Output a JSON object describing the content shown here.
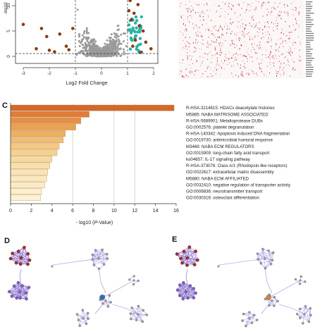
{
  "panels": {
    "c": "C",
    "d": "D",
    "e": "E"
  },
  "volcano": {
    "xlabel": "Log2 Fold Change",
    "ylabel": "-log10",
    "x_ticks": [
      "-3",
      "-2",
      "-1",
      "0",
      "1",
      "2"
    ],
    "y_ticks": [
      "0",
      "5",
      "10"
    ],
    "colors": {
      "ns": "#9a9a9a",
      "up": "#2bb3a6",
      "down": "#8b3a14"
    }
  },
  "chart_data": {
    "type": "bar",
    "orientation": "horizontal",
    "xlabel_prefix": "- log10 (",
    "xlabel_italic": "P",
    "xlabel_suffix": "-Value)",
    "xlim": [
      0,
      16
    ],
    "x_ticks": [
      "0",
      "2",
      "4",
      "6",
      "8",
      "10",
      "12",
      "14",
      "16"
    ],
    "grid_x": [
      6,
      10,
      12
    ],
    "categories": [
      "R-HSA-3214815: HDACs deacetylate histones",
      "M5885: NABA MATRISOME ASSOCIATED",
      "R-HSA-5689901: Metalloprotease DUBs",
      "GO:0002576: platelet degranulation",
      "R-HSA-140342: Apoptosis induced DNA fragmentation",
      "GO:0019730: antimicrobial humoral response",
      "M3468: NABA ECM REGULATORS",
      "GO:0015909: long-chain fatty acid transport",
      "ko04657: IL-17 signaling pathway",
      "R-HSA-373076: Class A/1 (Rhodopsin-like receptors)",
      "GO:0022617: extracellular matrix disassembly",
      "M5880: NABA ECM AFFILIATED",
      "GO:0032410: negative regulation of transporter activity",
      "GO:0006836: neurotransmitter transport",
      "GO:0030316: osteoclast differentiation"
    ],
    "values": [
      15.8,
      7.6,
      6.8,
      6.3,
      5.3,
      5.1,
      4.7,
      4.5,
      4.0,
      3.8,
      3.6,
      3.5,
      3.3,
      3.0,
      2.9
    ],
    "colors": [
      "#d5682a",
      "#e07d36",
      "#e58f44",
      "#e9a152",
      "#edb061",
      "#f0bd71",
      "#f3c882",
      "#f5d191",
      "#f7d99f",
      "#f8e0ab",
      "#f9e4b5",
      "#faE8be",
      "#fbebc5",
      "#fcefcd",
      "#fdf2d5"
    ]
  },
  "network": {
    "colors": {
      "red": "#a52a2a",
      "purple": "#7a5cc6",
      "edge": "#9a8ad6",
      "blue": "#2f6fb5",
      "orange": "#d9842b",
      "grey": "#9a9aa8"
    }
  }
}
